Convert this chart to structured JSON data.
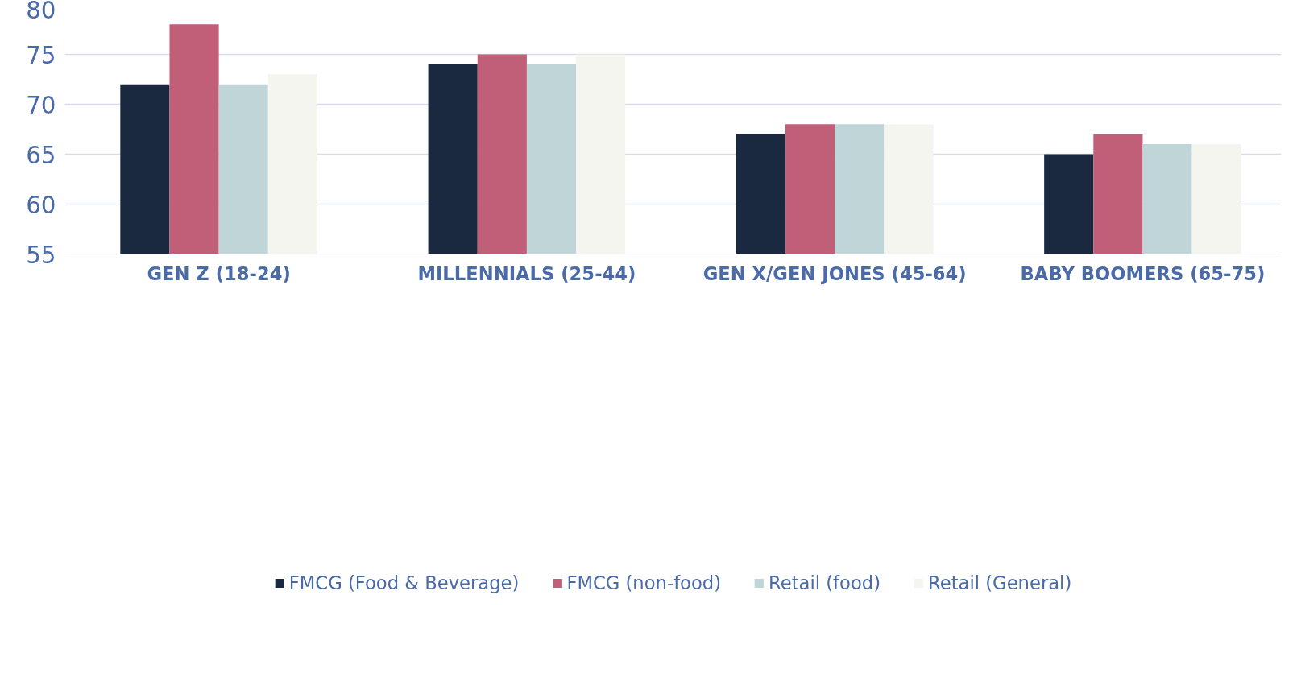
{
  "chart_data": {
    "type": "bar",
    "categories": [
      "GEN Z (18-24)",
      "MILLENNIALS (25-44)",
      "GEN X/GEN JONES (45-64)",
      "BABY BOOMERS (65-75)"
    ],
    "series": [
      {
        "name": "FMCG (Food & Beverage)",
        "color": "#1a2840",
        "values": [
          72,
          74,
          67,
          65
        ]
      },
      {
        "name": "FMCG (non-food)",
        "color": "#c05f77",
        "values": [
          78,
          75,
          68,
          67
        ]
      },
      {
        "name": "Retail (food)",
        "color": "#bfd5d8",
        "values": [
          72,
          74,
          68,
          66
        ]
      },
      {
        "name": "Retail (General)",
        "color": "#f4f5ef",
        "values": [
          73,
          75,
          68,
          66
        ]
      }
    ],
    "ylim": [
      55,
      80
    ],
    "yticks": [
      55,
      60,
      65,
      70,
      75,
      80
    ],
    "grid": "y",
    "legend": "bottom"
  }
}
